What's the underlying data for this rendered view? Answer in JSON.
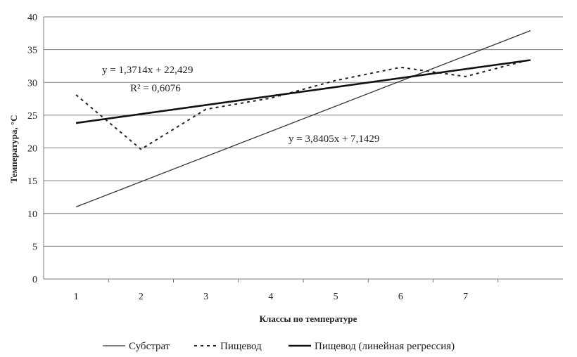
{
  "chart_data": {
    "type": "line",
    "xlabel": "Классы по температуре",
    "ylabel": "Температура, °С",
    "xlim": [
      0.5,
      8.5
    ],
    "ylim": [
      0,
      40
    ],
    "y_ticks": [
      "0",
      "5",
      "10",
      "15",
      "20",
      "25",
      "30",
      "35",
      "40"
    ],
    "x_ticks": [
      "1",
      "2",
      "3",
      "4",
      "5",
      "6",
      "7"
    ],
    "grid": "horizontal",
    "legend_position": "bottom",
    "series": [
      {
        "name": "Субстрат",
        "style": "solid-thin",
        "color": "#333333",
        "x": [
          1,
          8
        ],
        "y": [
          11.0,
          37.9
        ]
      },
      {
        "name": "Пищевод",
        "style": "dashed",
        "color": "#222222",
        "x": [
          1,
          2,
          3,
          4,
          5,
          6,
          7,
          8
        ],
        "y": [
          28.1,
          19.8,
          25.9,
          27.6,
          30.3,
          32.3,
          30.9,
          33.5
        ]
      },
      {
        "name": "Пищевод (линейная регрессия)",
        "style": "solid-thick",
        "color": "#111111",
        "x": [
          1,
          8
        ],
        "y": [
          23.8,
          33.4
        ]
      }
    ],
    "annotations": {
      "eq_food": "y = 1,3714x + 22,429",
      "r2_food": "R² = 0,6076",
      "eq_substrate": "y = 3,8405x + 7,1429"
    }
  }
}
